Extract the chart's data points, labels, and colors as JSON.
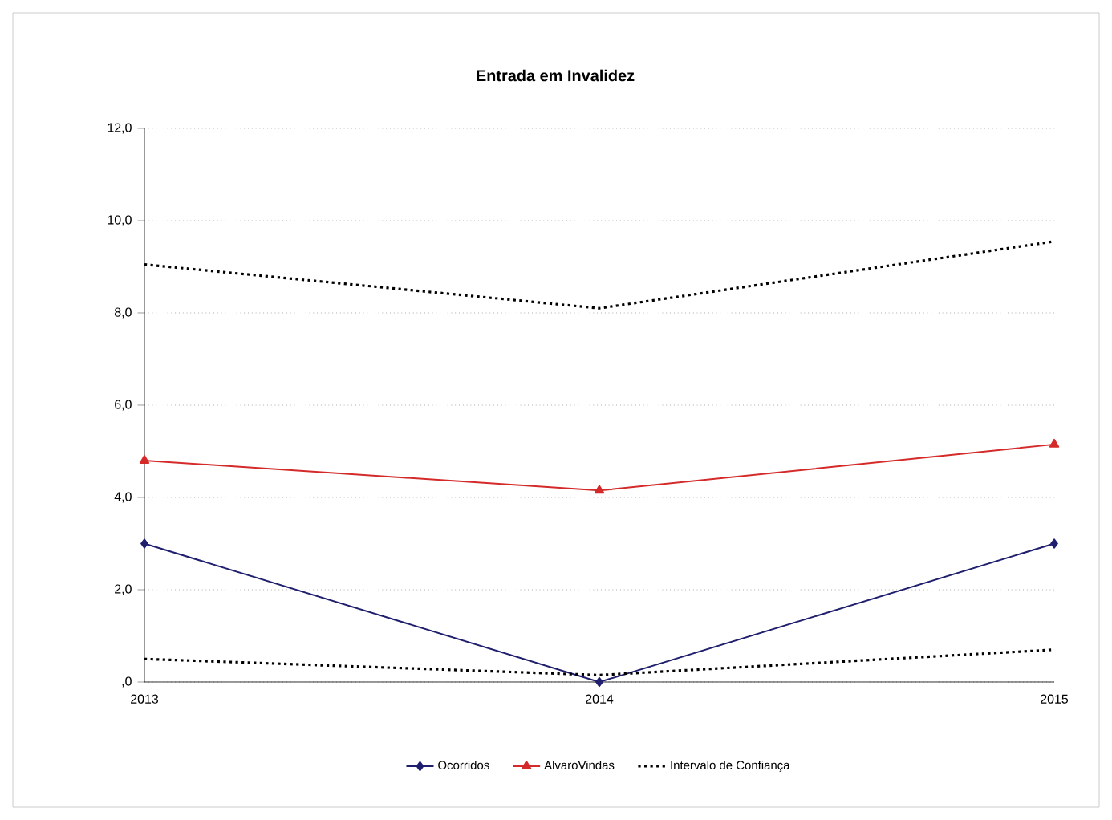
{
  "chart_data": {
    "type": "line",
    "title": "Entrada em Invalidez",
    "categories": [
      "2013",
      "2014",
      "2015"
    ],
    "series": [
      {
        "name": "Ocorridos",
        "color": "#1f1f6e",
        "values": [
          3.0,
          0.0,
          3.0
        ],
        "marker": "diamond",
        "line_style": "solid"
      },
      {
        "name": "AlvaroVindas",
        "color": "#d42a2a",
        "values": [
          4.8,
          4.15,
          5.15
        ],
        "marker": "triangle",
        "line_style": "solid"
      },
      {
        "name": "Intervalo de Confiança",
        "color": "#000000",
        "values": [
          9.05,
          8.1,
          9.55
        ],
        "marker": "none",
        "line_style": "dotted"
      },
      {
        "color": "#000000",
        "values": [
          0.5,
          0.15,
          0.7
        ],
        "marker": "none",
        "line_style": "dotted"
      }
    ],
    "ylim": [
      0,
      12
    ],
    "yticks": [
      {
        "value": 0,
        "label": ",0"
      },
      {
        "value": 2,
        "label": "2,0"
      },
      {
        "value": 4,
        "label": "4,0"
      },
      {
        "value": 6,
        "label": "6,0"
      },
      {
        "value": 8,
        "label": "8,0"
      },
      {
        "value": 10,
        "label": "10,0"
      },
      {
        "value": 12,
        "label": "12,0"
      }
    ],
    "grid": "y",
    "legend": "bottom"
  }
}
